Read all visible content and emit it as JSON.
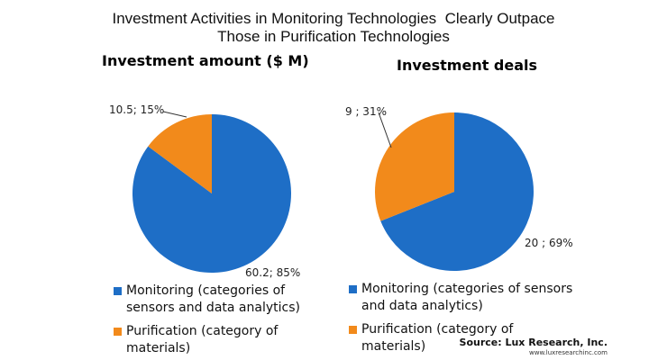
{
  "title_lines": [
    "Investment Activities in Monitoring Technologies  Clearly Outpace",
    "Those in Purification Technologies"
  ],
  "colors": {
    "Monitoring": "#1e6ec6",
    "Purification": "#f28a1b"
  },
  "chart_data": [
    {
      "type": "pie",
      "title": "Investment amount ($ M)",
      "slices": [
        {
          "category": "Monitoring",
          "value": 60.2,
          "percent": 85,
          "label": "60.2; 85%"
        },
        {
          "category": "Purification",
          "value": 10.5,
          "percent": 15,
          "label": "10.5; 15%"
        }
      ]
    },
    {
      "type": "pie",
      "title": "Investment deals",
      "slices": [
        {
          "category": "Monitoring",
          "value": 20,
          "percent": 69,
          "label": "20 ; 69%"
        },
        {
          "category": "Purification",
          "value": 9,
          "percent": 31,
          "label": "9 ; 31%"
        }
      ]
    }
  ],
  "legend": [
    {
      "category": "Monitoring",
      "label": "Monitoring (categories of sensors and data analytics)"
    },
    {
      "category": "Purification",
      "label": "Purification (category of materials)"
    }
  ],
  "source": {
    "line1": "Source: Lux Research, Inc.",
    "line2": "www.luxresearchinc.com"
  }
}
